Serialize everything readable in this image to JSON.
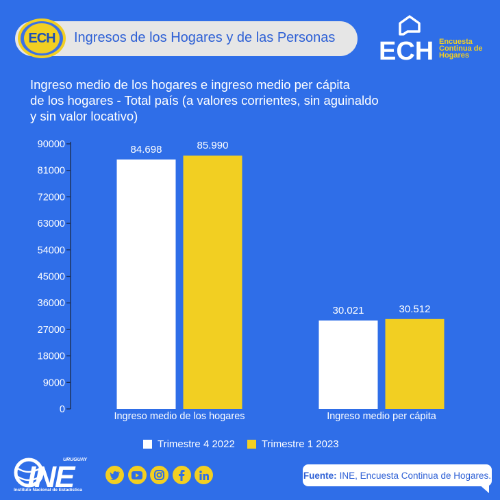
{
  "header": {
    "badge_text": "ECH",
    "title": "Ingresos de los Hogares y de las Personas"
  },
  "logo": {
    "main": "ECH",
    "sub": [
      "Encuesta",
      "Continua de",
      "Hogares"
    ]
  },
  "colors": {
    "background": "#2f6ee8",
    "series1": "#ffffff",
    "series2": "#f2cf22"
  },
  "chart_data": {
    "type": "bar",
    "title": "Ingreso medio de los hogares e ingreso medio per cápita de los hogares - Total país (a valores corrientes, sin aguinaldo y sin valor locativo)",
    "title_lines": [
      "Ingreso medio de los hogares e ingreso medio per cápita",
      "de los hogares - Total país (a valores corrientes, sin aguinaldo",
      "y sin valor locativo)"
    ],
    "categories": [
      "Ingreso medio de los hogares",
      "Ingreso medio per cápita"
    ],
    "series": [
      {
        "name": "Trimestre 4 2022",
        "values": [
          84698,
          30021
        ],
        "labels": [
          "84.698",
          "30.021"
        ]
      },
      {
        "name": "Trimestre 1 2023",
        "values": [
          85990,
          30512
        ],
        "labels": [
          "85.990",
          "30.512"
        ]
      }
    ],
    "yticks": [
      "0",
      "9000",
      "18000",
      "27000",
      "36000",
      "45000",
      "54000",
      "63000",
      "72000",
      "81000",
      "90000"
    ],
    "ylim": [
      0,
      90000
    ],
    "grid": false,
    "legend_position": "bottom"
  },
  "footer": {
    "ine_text": "INE",
    "ine_country": "URUGUAY",
    "ine_full": "Instituto Nacional de Estadística",
    "source_label": "Fuente:",
    "source_text": "INE, Encuesta Continua de Hogares.",
    "social_icons": [
      "twitter-icon",
      "youtube-icon",
      "instagram-icon",
      "facebook-icon",
      "linkedin-icon"
    ]
  }
}
